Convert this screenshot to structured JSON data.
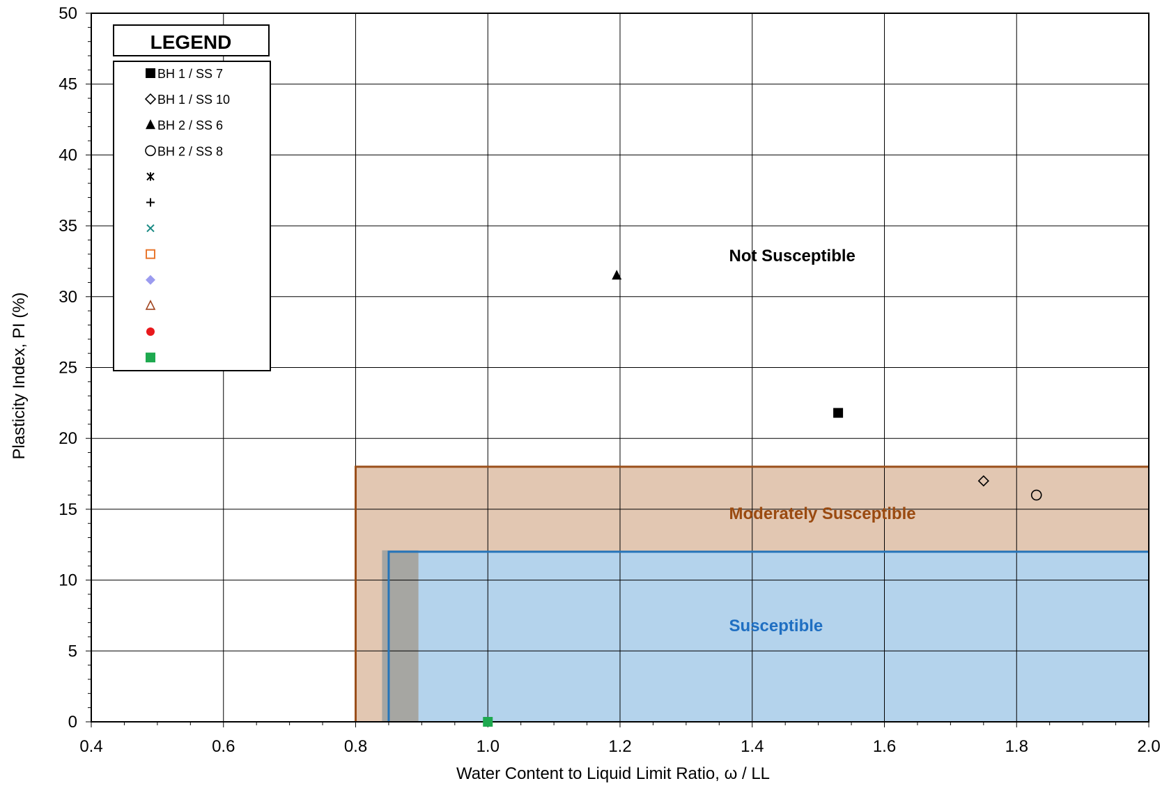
{
  "chart_data": {
    "type": "scatter",
    "xlabel": "Water Content to Liquid Limit Ratio, ω / LL",
    "ylabel": "Plasticity Index, PI (%)",
    "xlim": [
      0.4,
      2.0
    ],
    "ylim": [
      0,
      50
    ],
    "x_major_ticks": [
      "0.4",
      "0.6",
      "0.8",
      "1.0",
      "1.2",
      "1.4",
      "1.6",
      "1.8",
      "2.0"
    ],
    "y_major_ticks": [
      "0",
      "5",
      "10",
      "15",
      "20",
      "25",
      "30",
      "35",
      "40",
      "45",
      "50"
    ],
    "grid": true,
    "legend_position": "top-left",
    "legend_title": "LEGEND",
    "zones": [
      {
        "label": "Moderately Susceptible",
        "x": [
          0.8,
          2.0
        ],
        "y": [
          0,
          18
        ],
        "fill": "#e2c7b2",
        "stroke": "#9a4f1a",
        "label_color": "#9a4a10",
        "label_x": 1.365,
        "label_y": 14.3
      },
      {
        "label": "Susceptible",
        "x": [
          0.85,
          2.0
        ],
        "y": [
          0,
          12
        ],
        "fill": "#b4d3ec",
        "stroke": "#2574b9",
        "label_color": "#1f6fc2",
        "label_x": 1.365,
        "label_y": 6.4
      },
      {
        "label": "Not Susceptible",
        "label_color": "#000000",
        "label_x": 1.365,
        "label_y": 32.5
      }
    ],
    "overlap_band": {
      "x": [
        0.84,
        0.895
      ],
      "y": [
        0,
        12.1
      ],
      "fill": "#a6a6a2"
    },
    "series": [
      {
        "name": "BH 1 / SS 7",
        "marker": "filled-square",
        "color": "#000000",
        "points": [
          [
            1.53,
            21.8
          ]
        ]
      },
      {
        "name": "BH 1 / SS 10",
        "marker": "open-diamond",
        "color": "#000000",
        "points": [
          [
            1.75,
            17.0
          ]
        ]
      },
      {
        "name": "BH 2 / SS 6",
        "marker": "filled-triangle",
        "color": "#000000",
        "points": [
          [
            1.195,
            31.5
          ]
        ]
      },
      {
        "name": "BH 2 / SS 8",
        "marker": "open-circle",
        "color": "#000000",
        "points": [
          [
            1.83,
            16.0
          ]
        ]
      },
      {
        "name": "",
        "marker": "asterisk",
        "color": "#000000",
        "points": []
      },
      {
        "name": "",
        "marker": "plus",
        "color": "#000000",
        "points": []
      },
      {
        "name": "",
        "marker": "x-cross",
        "color": "#1a8a84",
        "points": []
      },
      {
        "name": "",
        "marker": "open-square",
        "color": "#e8772e",
        "points": []
      },
      {
        "name": "",
        "marker": "filled-diamond",
        "color": "#9b9bef",
        "points": []
      },
      {
        "name": "",
        "marker": "open-triangle",
        "color": "#a0441e",
        "points": []
      },
      {
        "name": "",
        "marker": "filled-circle",
        "color": "#e8181c",
        "points": []
      },
      {
        "name": "",
        "marker": "filled-square",
        "color": "#1ea94f",
        "points": [
          [
            1.0,
            0.0
          ]
        ]
      }
    ]
  }
}
